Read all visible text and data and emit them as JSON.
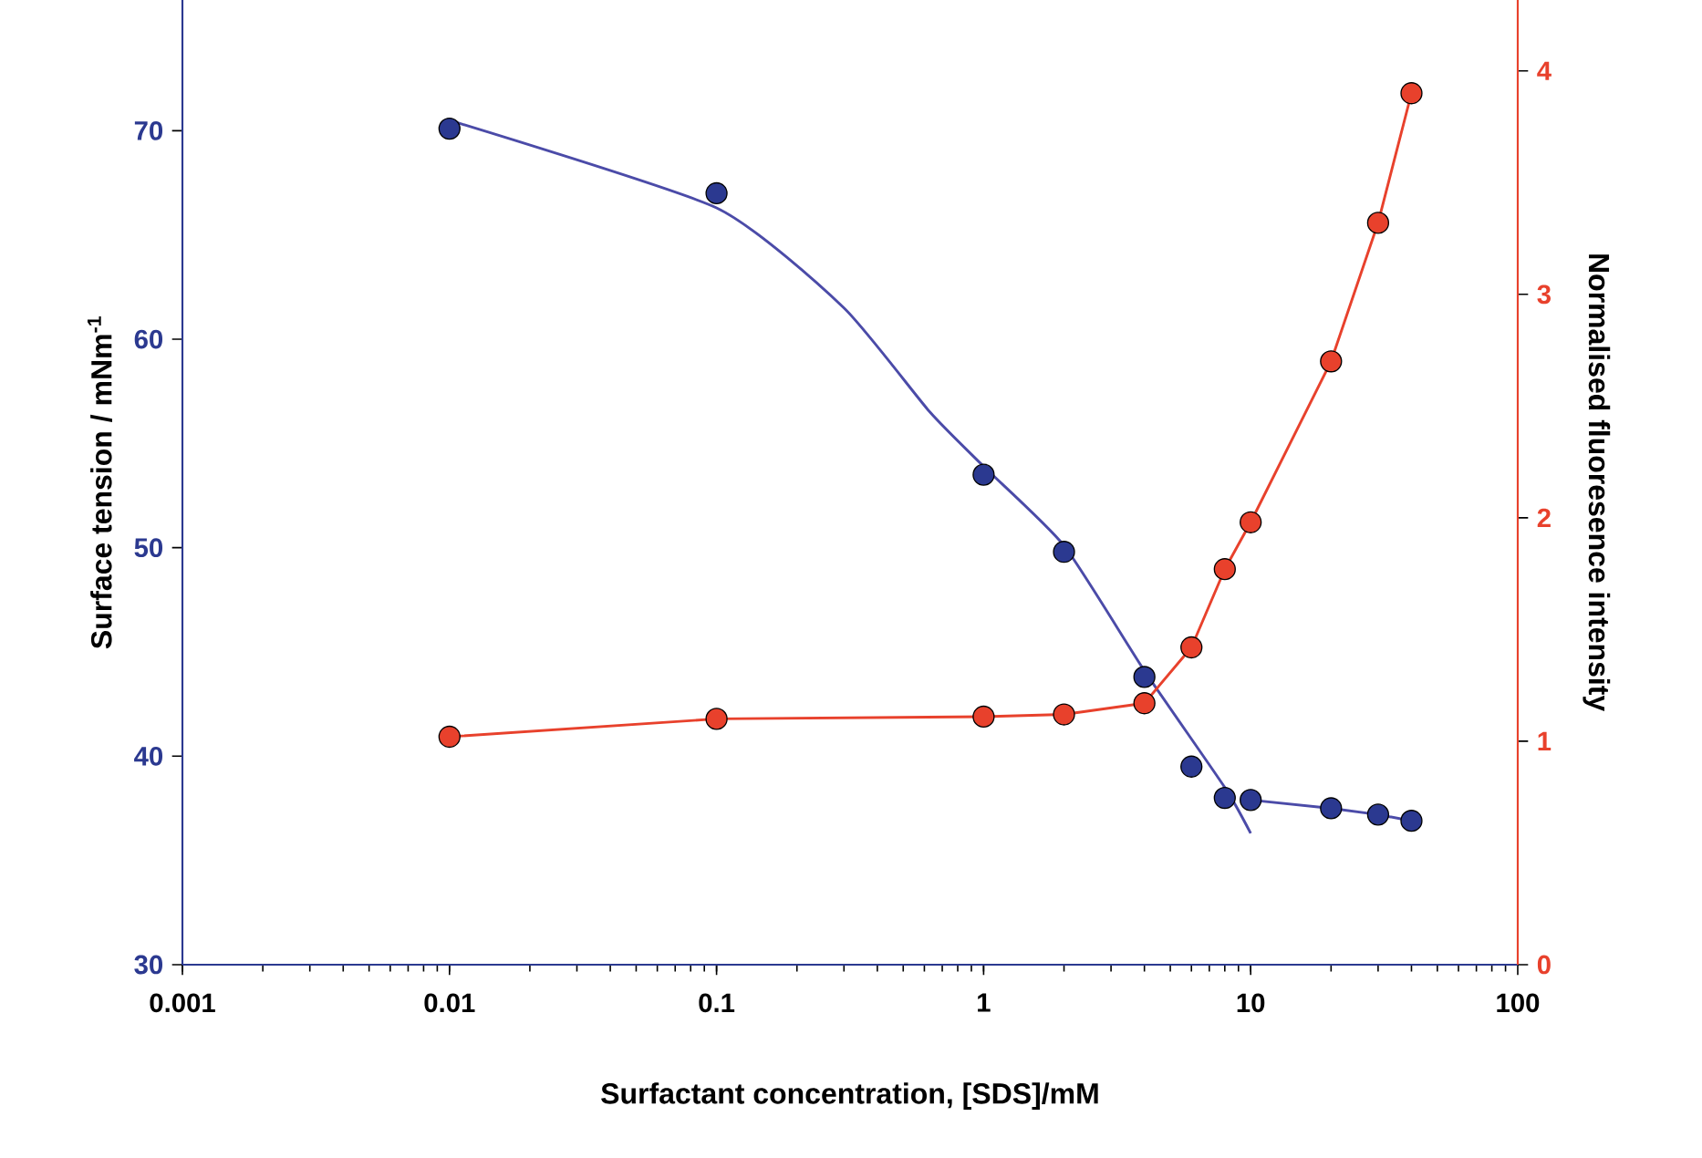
{
  "chart_data": {
    "type": "scatter",
    "xlabel": "Surfactant concentration, [SDS]/mM",
    "ylabel": "Surface tension / mNm$^{-1}$",
    "y2label": "Normalised fluoresence intensity",
    "log": "x",
    "grid": false,
    "marker": "circle",
    "xlim": [
      0.001,
      100
    ],
    "xticks": [
      0.001,
      0.01,
      0.1,
      1,
      10,
      100
    ],
    "ylim": [
      30,
      76.3
    ],
    "yticks": [
      30,
      40,
      50,
      60,
      70
    ],
    "y2lim": [
      0,
      4.32
    ],
    "y2ticks": [
      0,
      1,
      2,
      3,
      4
    ],
    "series": [
      {
        "type": "line",
        "marker": "none",
        "color": "#4b4ba8",
        "x": [
          0.01,
          0.1,
          0.3,
          0.63,
          1,
          2,
          4,
          8,
          10
        ],
        "values": [
          70.5,
          66.3,
          61.5,
          56.5,
          53.9,
          50.1,
          44.1,
          38.5,
          36.3
        ]
      },
      {
        "type": "line",
        "marker": "none",
        "color": "#4b4ba8",
        "x": [
          10,
          20,
          30,
          40
        ],
        "values": [
          37.9,
          37.5,
          37.2,
          36.9
        ]
      },
      {
        "color": "#2b3990",
        "x": [
          0.01,
          0.1,
          1,
          2,
          4,
          6,
          8,
          10,
          20,
          30,
          40
        ],
        "values": [
          70.1,
          67.0,
          53.5,
          49.8,
          43.8,
          39.5,
          38.0,
          37.9,
          37.5,
          37.2,
          36.9
        ]
      },
      {
        "type": "line",
        "axis": "y2",
        "color": "#e8412c",
        "x": [
          0.01,
          0.1,
          1,
          2,
          4,
          6,
          8,
          10,
          20,
          30,
          40
        ],
        "values": [
          1.02,
          1.1,
          1.11,
          1.12,
          1.17,
          1.42,
          1.77,
          1.98,
          2.7,
          3.32,
          3.9
        ]
      }
    ]
  }
}
